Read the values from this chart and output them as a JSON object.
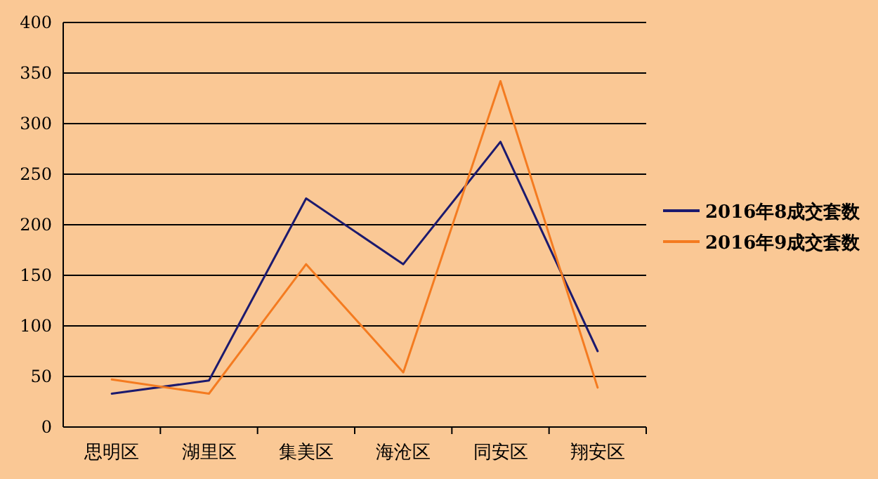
{
  "chart_data": {
    "type": "line",
    "categories": [
      "思明区",
      "湖里区",
      "集美区",
      "海沧区",
      "同安区",
      "翔安区"
    ],
    "series": [
      {
        "name": "2016年8成交套数",
        "color": "#1c1a6e",
        "values": [
          33,
          46,
          226,
          161,
          282,
          75
        ]
      },
      {
        "name": "2016年9成交套数",
        "color": "#f47b20",
        "values": [
          47,
          33,
          161,
          54,
          342,
          39
        ]
      }
    ],
    "ylim": [
      0,
      400
    ],
    "yticks": [
      0,
      50,
      100,
      150,
      200,
      250,
      300,
      350,
      400
    ],
    "grid": "y",
    "legend": "right",
    "marker": "none",
    "line_style": "solid"
  }
}
